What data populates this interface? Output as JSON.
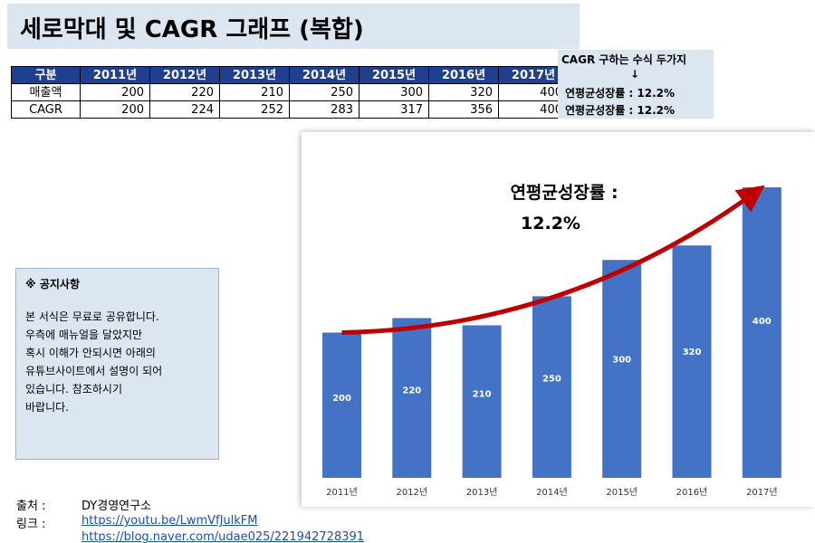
{
  "title": "세로막대 및 CAGR 그래프 (복합)",
  "table": {
    "headers": [
      "구분",
      "2011년",
      "2012년",
      "2013년",
      "2014년",
      "2015년",
      "2016년",
      "2017년"
    ],
    "rows": [
      {
        "label": "매출액",
        "values": [
          "200",
          "220",
          "210",
          "250",
          "300",
          "320",
          "400"
        ]
      },
      {
        "label": "CAGR",
        "values": [
          "200",
          "224",
          "252",
          "283",
          "317",
          "356",
          "400"
        ]
      }
    ]
  },
  "cagr_note": {
    "heading": "CAGR 구하는 수식 두가지",
    "arrow": "↓",
    "line1": "연평균성장률 : 12.2%",
    "line2": "연평균성장률 : 12.2%"
  },
  "notice": {
    "heading": "※ 공지사항",
    "lines": [
      "본 서식은 무료로 공유합니다.",
      "우측에 매뉴얼을 달았지만",
      "혹시 이해가 안되시면 아래의",
      "유튜브사이트에서 설명이 되어",
      "있습니다. 참조하시기",
      "바랍니다."
    ]
  },
  "source": {
    "label1": "출처 :",
    "value1": "DY경영연구소",
    "label2": "링크 :",
    "link1": "https://youtu.be/LwmVfJulkFM",
    "link2": "https://blog.naver.com/udae025/221942728391"
  },
  "colors": {
    "bar": "#4472c4",
    "arrow": "#c00000",
    "header_fill": "#1f3f8f",
    "panel_fill": "#dce6f1"
  },
  "chart_data": {
    "type": "bar",
    "categories": [
      "2011년",
      "2012년",
      "2013년",
      "2014년",
      "2015년",
      "2016년",
      "2017년"
    ],
    "values": [
      200,
      220,
      210,
      250,
      300,
      320,
      400
    ],
    "data_labels": [
      "200",
      "220",
      "210",
      "250",
      "300",
      "320",
      "400"
    ],
    "annotation_line1": "연평균성장률 :",
    "annotation_line2": "12.2%",
    "trend": {
      "type": "arrow",
      "from_value": 200,
      "to_value": 400
    },
    "ylim": [
      0,
      400
    ],
    "grid": false,
    "legend": "none"
  }
}
